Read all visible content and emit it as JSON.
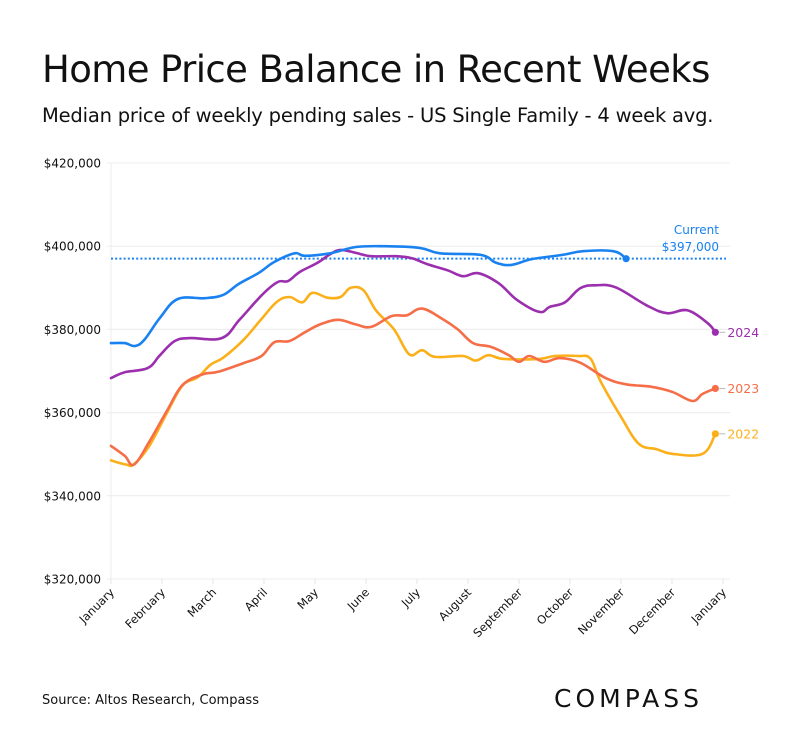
{
  "header": {
    "title": "Home Price Balance in Recent Weeks",
    "subtitle": "Median price of weekly pending sales - US Single Family - 4 week avg."
  },
  "footer": {
    "source": "Source: Altos Research, Compass",
    "logo": "COMPASS"
  },
  "chart_data": {
    "type": "line",
    "title": "Home Price Balance in Recent Weeks",
    "subtitle": "Median price of weekly pending sales - US Single Family - 4 week avg.",
    "xlabel": "",
    "ylabel": "",
    "x_unit": "month index (0 = January, 12 = following January)",
    "y_unit": "USD thousands",
    "ylim": [
      320,
      420
    ],
    "xlim": [
      0,
      12
    ],
    "yticks": [
      320,
      340,
      360,
      380,
      400,
      420
    ],
    "ytick_labels": [
      "$320,000",
      "$340,000",
      "$360,000",
      "$380,000",
      "$400,000",
      "$420,000"
    ],
    "xtick_labels": [
      "January",
      "February",
      "March",
      "April",
      "May",
      "June",
      "July",
      "August",
      "September",
      "October",
      "November",
      "December",
      "January"
    ],
    "grid": "horizontal",
    "legend": "direct labels at line ends (right)",
    "reference_line": {
      "label_line1": "Current",
      "label_line2": "$397,000",
      "value": 397,
      "style": "dotted",
      "color": "#1a82f0"
    },
    "series": [
      {
        "name": "Current",
        "color": "#1a82f0",
        "end_label": "",
        "end_marker": true,
        "points": [
          [
            0,
            376.7
          ],
          [
            0.27,
            376.7
          ],
          [
            0.47,
            376.0
          ],
          [
            0.66,
            377.6
          ],
          [
            0.96,
            382.8
          ],
          [
            1.31,
            387.3
          ],
          [
            1.84,
            387.5
          ],
          [
            2.2,
            388.3
          ],
          [
            2.5,
            390.9
          ],
          [
            2.9,
            393.6
          ],
          [
            3.2,
            396.2
          ],
          [
            3.6,
            398.3
          ],
          [
            3.8,
            397.7
          ],
          [
            4.3,
            398.3
          ],
          [
            4.8,
            399.8
          ],
          [
            5.35,
            400.0
          ],
          [
            6.05,
            399.6
          ],
          [
            6.45,
            398.3
          ],
          [
            7.25,
            397.9
          ],
          [
            7.55,
            396.0
          ],
          [
            7.85,
            395.5
          ],
          [
            8.25,
            396.9
          ],
          [
            8.85,
            397.9
          ],
          [
            9.25,
            398.8
          ],
          [
            9.85,
            398.8
          ],
          [
            10.1,
            397.0
          ]
        ]
      },
      {
        "name": "2024",
        "color": "#9b2fae",
        "end_label": "2024",
        "end_marker": true,
        "points": [
          [
            0,
            368.3
          ],
          [
            0.27,
            369.7
          ],
          [
            0.72,
            370.7
          ],
          [
            0.96,
            373.8
          ],
          [
            1.25,
            377.2
          ],
          [
            1.55,
            377.9
          ],
          [
            2.17,
            377.9
          ],
          [
            2.52,
            382.3
          ],
          [
            2.96,
            388.3
          ],
          [
            3.27,
            391.4
          ],
          [
            3.47,
            391.6
          ],
          [
            3.7,
            393.8
          ],
          [
            4.05,
            396.0
          ],
          [
            4.3,
            398.1
          ],
          [
            4.5,
            399.1
          ],
          [
            4.8,
            398.4
          ],
          [
            5.1,
            397.6
          ],
          [
            5.6,
            397.6
          ],
          [
            5.9,
            397.1
          ],
          [
            6.2,
            395.7
          ],
          [
            6.6,
            394.2
          ],
          [
            6.9,
            392.8
          ],
          [
            7.2,
            393.5
          ],
          [
            7.6,
            391.1
          ],
          [
            7.96,
            387.1
          ],
          [
            8.4,
            384.2
          ],
          [
            8.6,
            385.4
          ],
          [
            8.9,
            386.5
          ],
          [
            9.2,
            389.9
          ],
          [
            9.5,
            390.6
          ],
          [
            9.9,
            390.1
          ],
          [
            10.5,
            385.8
          ],
          [
            10.9,
            383.9
          ],
          [
            11.3,
            384.6
          ],
          [
            11.7,
            381.5
          ],
          [
            11.85,
            379.3
          ]
        ]
      },
      {
        "name": "2023",
        "color": "#f56e48",
        "end_label": "2023",
        "end_marker": true,
        "points": [
          [
            0,
            352.0
          ],
          [
            0.27,
            349.6
          ],
          [
            0.45,
            347.5
          ],
          [
            0.75,
            353.0
          ],
          [
            1.1,
            360.5
          ],
          [
            1.4,
            366.6
          ],
          [
            1.8,
            369.2
          ],
          [
            2.1,
            369.8
          ],
          [
            2.6,
            371.9
          ],
          [
            2.95,
            373.6
          ],
          [
            3.2,
            376.9
          ],
          [
            3.5,
            377.2
          ],
          [
            3.8,
            379.3
          ],
          [
            4.1,
            381.2
          ],
          [
            4.45,
            382.3
          ],
          [
            4.8,
            381.2
          ],
          [
            5.1,
            380.6
          ],
          [
            5.5,
            383.2
          ],
          [
            5.8,
            383.4
          ],
          [
            6.1,
            385.0
          ],
          [
            6.5,
            382.5
          ],
          [
            6.8,
            380.0
          ],
          [
            7.1,
            376.7
          ],
          [
            7.45,
            375.8
          ],
          [
            7.8,
            373.8
          ],
          [
            8.0,
            372.2
          ],
          [
            8.2,
            373.6
          ],
          [
            8.5,
            372.2
          ],
          [
            8.8,
            373.1
          ],
          [
            9.2,
            372.0
          ],
          [
            9.7,
            368.3
          ],
          [
            10.1,
            366.8
          ],
          [
            10.6,
            366.2
          ],
          [
            11.0,
            365.0
          ],
          [
            11.4,
            362.8
          ],
          [
            11.6,
            364.5
          ],
          [
            11.85,
            365.8
          ]
        ]
      },
      {
        "name": "2022",
        "color": "#fbb01a",
        "end_label": "2022",
        "end_marker": true,
        "points": [
          [
            0,
            348.5
          ],
          [
            0.3,
            347.5
          ],
          [
            0.45,
            347.6
          ],
          [
            0.75,
            352.0
          ],
          [
            1.1,
            360.0
          ],
          [
            1.4,
            366.5
          ],
          [
            1.7,
            368.5
          ],
          [
            1.95,
            371.5
          ],
          [
            2.2,
            373.2
          ],
          [
            2.6,
            377.5
          ],
          [
            2.95,
            382.5
          ],
          [
            3.25,
            386.6
          ],
          [
            3.5,
            387.8
          ],
          [
            3.75,
            386.5
          ],
          [
            3.95,
            388.8
          ],
          [
            4.25,
            387.6
          ],
          [
            4.5,
            387.8
          ],
          [
            4.7,
            390.0
          ],
          [
            4.95,
            389.4
          ],
          [
            5.2,
            384.5
          ],
          [
            5.55,
            380.0
          ],
          [
            5.85,
            374.0
          ],
          [
            6.1,
            375.0
          ],
          [
            6.35,
            373.4
          ],
          [
            6.9,
            373.6
          ],
          [
            7.15,
            372.5
          ],
          [
            7.4,
            373.8
          ],
          [
            7.7,
            372.9
          ],
          [
            8.4,
            372.9
          ],
          [
            8.7,
            373.6
          ],
          [
            9.15,
            373.6
          ],
          [
            9.4,
            373.0
          ],
          [
            9.6,
            367.5
          ],
          [
            10.0,
            359.0
          ],
          [
            10.35,
            352.5
          ],
          [
            10.7,
            351.2
          ],
          [
            11.0,
            350.1
          ],
          [
            11.6,
            350.1
          ],
          [
            11.85,
            354.9
          ]
        ]
      }
    ]
  }
}
